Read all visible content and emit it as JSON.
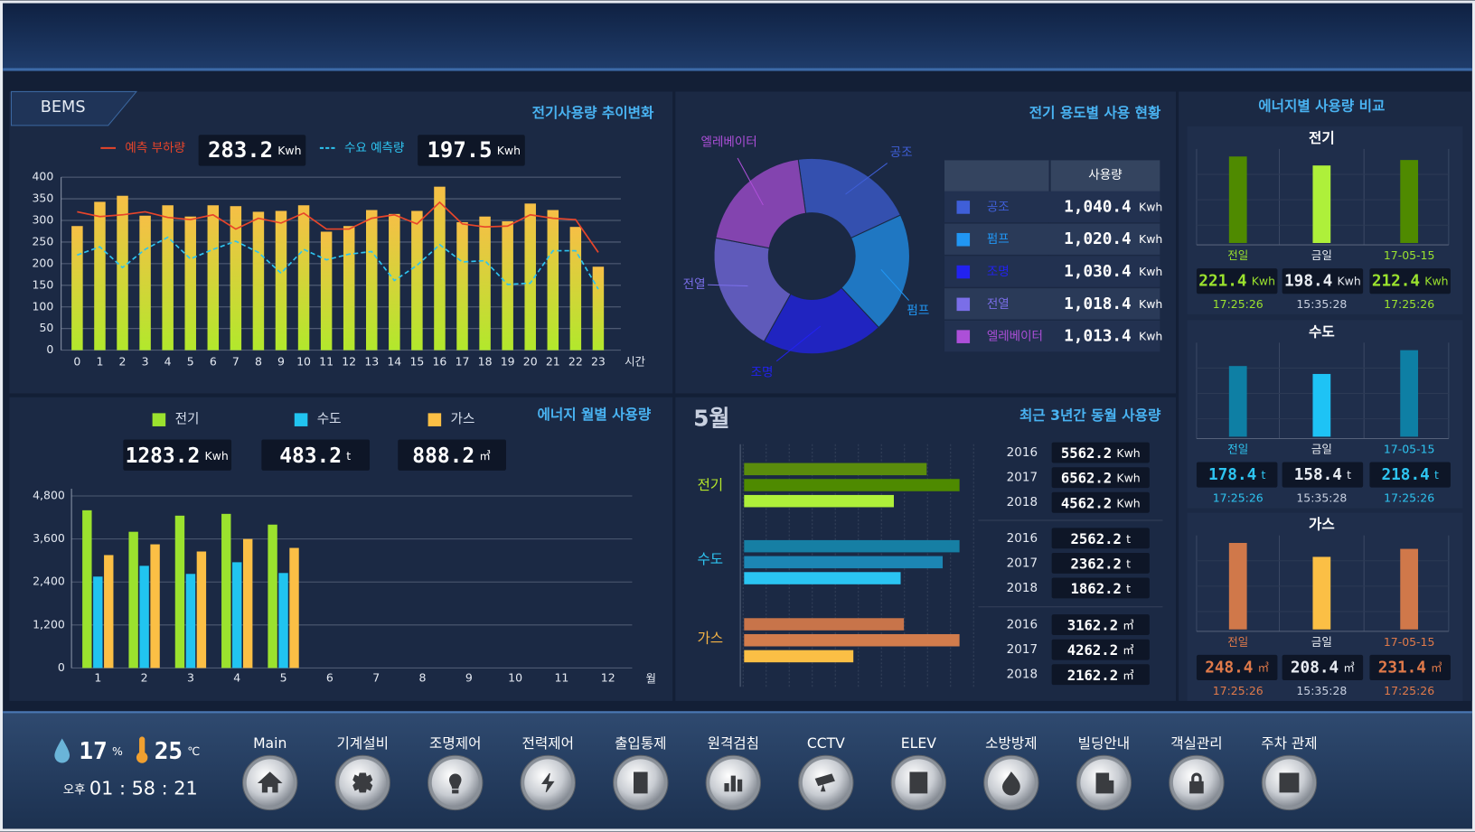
{
  "panel_label": "BEMS",
  "chart_data": [
    {
      "type": "bar",
      "title": "전기사용량 추이변화",
      "x_label": "시간",
      "categories": [
        "0",
        "1",
        "2",
        "3",
        "4",
        "5",
        "6",
        "7",
        "8",
        "9",
        "10",
        "11",
        "12",
        "13",
        "14",
        "15",
        "16",
        "17",
        "18",
        "19",
        "20",
        "21",
        "22",
        "23"
      ],
      "ylim": [
        0,
        400
      ],
      "yticks": [
        0,
        50,
        100,
        150,
        200,
        250,
        300,
        350,
        400
      ],
      "grid": true,
      "series": [
        {
          "type": "bar",
          "colors": [
            "#b2e82c",
            "#f6bf46"
          ],
          "values": [
            287,
            343,
            357,
            311,
            335,
            309,
            335,
            333,
            320,
            322,
            335,
            274,
            287,
            324,
            315,
            322,
            378,
            296,
            309,
            298,
            339,
            324,
            285,
            193
          ]
        },
        {
          "type": "line",
          "name": "예측 부하량",
          "color": "#e8452a",
          "current": 283.2,
          "unit": "Kwh",
          "values": [
            320,
            309,
            313,
            320,
            307,
            302,
            313,
            280,
            305,
            294,
            317,
            280,
            280,
            305,
            313,
            292,
            342,
            292,
            285,
            287,
            313,
            305,
            302,
            226
          ]
        },
        {
          "type": "line",
          "name": "수요 예측량",
          "color": "#2ec4f0",
          "dashed": true,
          "current": 197.5,
          "unit": "Kwh",
          "values": [
            220,
            239,
            191,
            233,
            261,
            211,
            233,
            252,
            226,
            178,
            233,
            209,
            222,
            228,
            161,
            196,
            244,
            204,
            207,
            152,
            155,
            230,
            230,
            141
          ]
        }
      ]
    },
    {
      "type": "bar",
      "title": "에너지 월별 사용량",
      "x_label": "월",
      "categories": [
        "1",
        "2",
        "3",
        "4",
        "5",
        "6",
        "7",
        "8",
        "9",
        "10",
        "11",
        "12"
      ],
      "ylim": [
        0,
        5000
      ],
      "yticks": [
        0,
        {
          "value": 1200,
          "label": "1,200"
        },
        {
          "value": 2400,
          "label": "2,400"
        },
        {
          "value": 3600,
          "label": "3,600"
        },
        {
          "value": 4800,
          "label": "4,800"
        }
      ],
      "grid": true,
      "series": [
        {
          "name": "전기",
          "color": "#9be22e",
          "total": 1283.2,
          "unit": "Kwh",
          "values": [
            4400,
            3800,
            4250,
            4300,
            4000,
            null,
            null,
            null,
            null,
            null,
            null,
            null
          ]
        },
        {
          "name": "수도",
          "color": "#21c4f0",
          "total": 483.2,
          "unit": "t",
          "values": [
            2550,
            2850,
            2625,
            2950,
            2650,
            null,
            null,
            null,
            null,
            null,
            null,
            null
          ]
        },
        {
          "name": "가스",
          "color": "#fbbf45",
          "total": 888.2,
          "unit": "㎥",
          "values": [
            3150,
            3450,
            3250,
            3600,
            3350,
            null,
            null,
            null,
            null,
            null,
            null,
            null
          ]
        }
      ]
    },
    {
      "type": "pie",
      "title": "전기 용도별 사용 현황",
      "table_header": "사용량",
      "unit": "Kwh",
      "categories": [
        "공조",
        "펌프",
        "조명",
        "전열",
        "엘레베이터"
      ],
      "values": [
        1040.4,
        1020.4,
        1030.4,
        1018.4,
        1013.4
      ],
      "value_labels": [
        "1,040.4",
        "1,020.4",
        "1,030.4",
        "1,018.4",
        "1,013.4"
      ],
      "colors": [
        "#3f5fd8",
        "#2196f3",
        "#2222f0",
        "#7a6ee8",
        "#ac4fd8"
      ]
    },
    {
      "type": "hbar",
      "label": "5월",
      "title": "최근 3년간 동월 사용량",
      "groups": [
        {
          "name": "전기",
          "color": "#b6e82a",
          "unit": "Kwh",
          "categories": [
            "2016",
            "2017",
            "2018"
          ],
          "values": [
            5562.2,
            6562.2,
            4562.2
          ],
          "colors": [
            "#5a8c0c",
            "#4e8a00",
            "#aef03a"
          ]
        },
        {
          "name": "수도",
          "color": "#2ec4f0",
          "unit": "t",
          "categories": [
            "2016",
            "2017",
            "2018"
          ],
          "values": [
            2562.2,
            2362.2,
            1862.2
          ],
          "colors": [
            "#167fa4",
            "#1c86b4",
            "#2ac4f2"
          ]
        },
        {
          "name": "가스",
          "color": "#f6b445",
          "unit": "㎥",
          "categories": [
            "2016",
            "2017",
            "2018"
          ],
          "values": [
            3162.2,
            4262.2,
            2162.2
          ],
          "colors": [
            "#c8744a",
            "#d27c4c",
            "#fbbf45"
          ]
        }
      ]
    },
    {
      "type": "compare",
      "title": "에너지별 사용량 비교",
      "panels": [
        {
          "name": "전기",
          "unit": "Kwh",
          "accent": "#9be22e",
          "categories": [
            "전일",
            "금일",
            "17-05-15"
          ],
          "values": [
            221.4,
            198.4,
            212.4
          ],
          "times": [
            "17:25:26",
            "15:35:28",
            "17:25:26"
          ],
          "colors": [
            "#4f8a00",
            "#aef03a",
            "#4f8a00"
          ]
        },
        {
          "name": "수도",
          "unit": "t",
          "accent": "#2ec4f0",
          "categories": [
            "전일",
            "금일",
            "17-05-15"
          ],
          "values": [
            178.4,
            158.4,
            218.4
          ],
          "times": [
            "17:25:26",
            "15:35:28",
            "17:25:26"
          ],
          "colors": [
            "#0e7fa4",
            "#1ec3f5",
            "#0e7fa4"
          ]
        },
        {
          "name": "가스",
          "unit": "㎥",
          "accent": "#e07a4a",
          "categories": [
            "전일",
            "금일",
            "17-05-15"
          ],
          "values": [
            248.4,
            208.4,
            231.4
          ],
          "times": [
            "17:25:26",
            "15:35:28",
            "17:25:26"
          ],
          "colors": [
            "#d0784a",
            "#fbbf45",
            "#d0784a"
          ]
        }
      ]
    }
  ],
  "status": {
    "humidity": 17,
    "humidity_unit": "%",
    "temperature": 25,
    "temperature_unit": "℃",
    "period": "오후",
    "time": "01 : 58 : 21"
  },
  "nav": {
    "buttons": [
      "Main",
      "기계설비",
      "조명제어",
      "전력제어",
      "출입통제",
      "원격검침",
      "CCTV",
      "ELEV",
      "소방방제",
      "빌딩안내",
      "객실관리",
      "주차 관제"
    ]
  }
}
